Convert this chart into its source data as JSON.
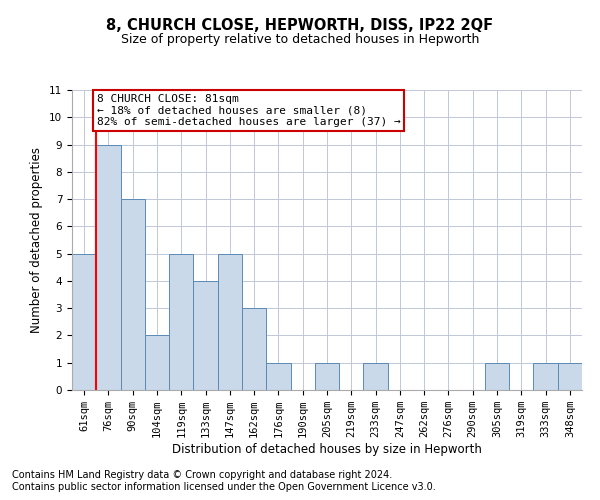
{
  "title": "8, CHURCH CLOSE, HEPWORTH, DISS, IP22 2QF",
  "subtitle": "Size of property relative to detached houses in Hepworth",
  "xlabel": "Distribution of detached houses by size in Hepworth",
  "ylabel": "Number of detached properties",
  "categories": [
    "61sqm",
    "76sqm",
    "90sqm",
    "104sqm",
    "119sqm",
    "133sqm",
    "147sqm",
    "162sqm",
    "176sqm",
    "190sqm",
    "205sqm",
    "219sqm",
    "233sqm",
    "247sqm",
    "262sqm",
    "276sqm",
    "290sqm",
    "305sqm",
    "319sqm",
    "333sqm",
    "348sqm"
  ],
  "values": [
    5,
    9,
    7,
    2,
    5,
    4,
    5,
    3,
    1,
    0,
    1,
    0,
    1,
    0,
    0,
    0,
    0,
    1,
    0,
    1,
    1
  ],
  "bar_color": "#c9d9ea",
  "bar_edge_color": "#5a8ab5",
  "annotation_text": "8 CHURCH CLOSE: 81sqm\n← 18% of detached houses are smaller (8)\n82% of semi-detached houses are larger (37) →",
  "annotation_box_color": "#ffffff",
  "annotation_box_edge_color": "#cc0000",
  "ylim": [
    0,
    11
  ],
  "yticks": [
    0,
    1,
    2,
    3,
    4,
    5,
    6,
    7,
    8,
    9,
    10,
    11
  ],
  "footer_line1": "Contains HM Land Registry data © Crown copyright and database right 2024.",
  "footer_line2": "Contains public sector information licensed under the Open Government Licence v3.0.",
  "bg_color": "#ffffff",
  "grid_color": "#c0c8d8",
  "title_fontsize": 10.5,
  "subtitle_fontsize": 9,
  "axis_label_fontsize": 8.5,
  "tick_fontsize": 7.5,
  "footer_fontsize": 7,
  "annotation_fontsize": 8
}
